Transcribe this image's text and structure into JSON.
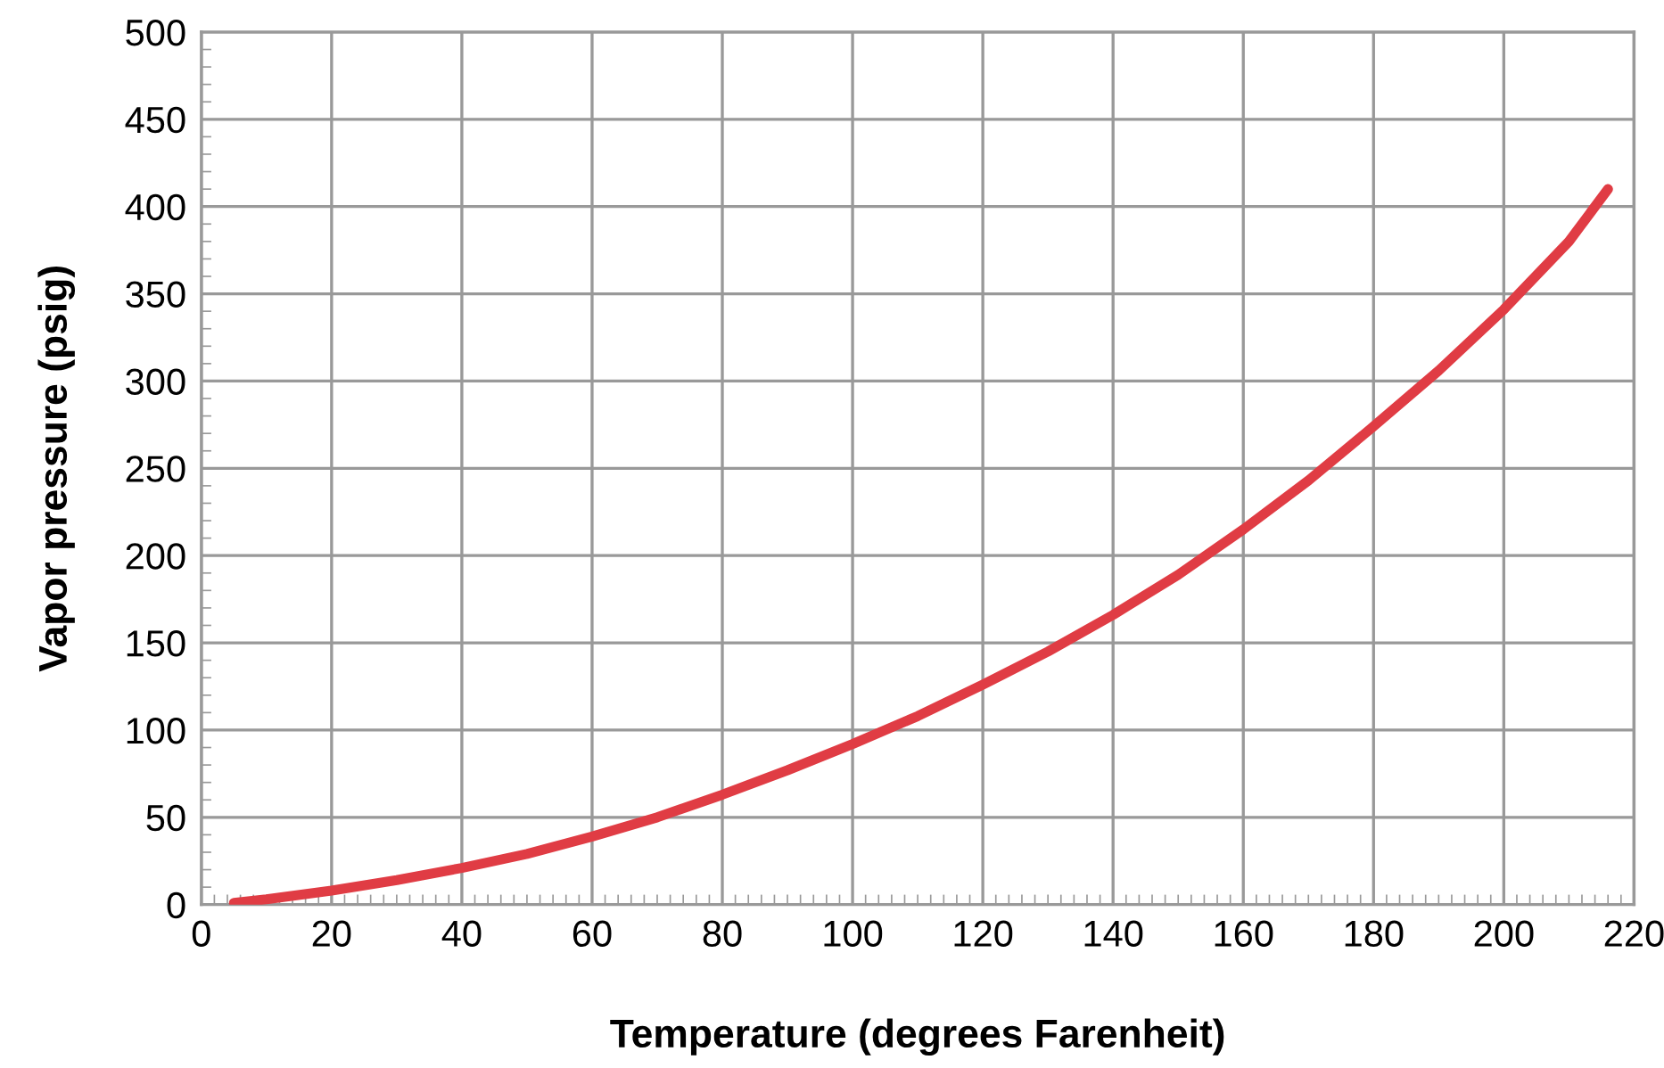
{
  "chart_data": {
    "type": "line",
    "xlabel": "Temperature (degrees Farenheit)",
    "ylabel": "Vapor pressure (psig)",
    "x": [
      5,
      10,
      20,
      30,
      40,
      50,
      60,
      70,
      80,
      90,
      100,
      110,
      120,
      130,
      140,
      150,
      160,
      170,
      180,
      190,
      200,
      210,
      216
    ],
    "series": [
      {
        "color": "#e03c44",
        "values": [
          1,
          3,
          8,
          14,
          21,
          29,
          39,
          50,
          63,
          77,
          92,
          108,
          126,
          145,
          166,
          189,
          215,
          243,
          274,
          306,
          341,
          380,
          410
        ]
      }
    ],
    "xlim": [
      0,
      220
    ],
    "xticks": [
      0,
      20,
      40,
      60,
      80,
      100,
      120,
      140,
      160,
      180,
      200,
      220
    ],
    "ylim": [
      0,
      500
    ],
    "yticks": [
      0,
      50,
      100,
      150,
      200,
      250,
      300,
      350,
      400,
      450,
      500
    ],
    "grid": true,
    "legend": false,
    "marker": "none",
    "line_style": "solid"
  }
}
